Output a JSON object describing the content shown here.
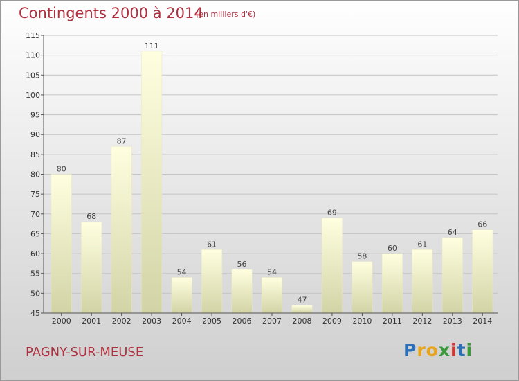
{
  "header": {
    "title": "Contingents 2000 à 2014",
    "unit": "(en milliers d'€)"
  },
  "footer": {
    "commune": "PAGNY-SUR-MEUSE",
    "logo": "Proxiti"
  },
  "colors": {
    "title": "#b03040",
    "bar_light": "#ffffe0",
    "bar_dark": "#d2d4a6",
    "logo": [
      "#2b6fb6",
      "#e8a317",
      "#e8a317",
      "#3a9a3a",
      "#d8332e",
      "#2b6fb6",
      "#3a9a3a"
    ]
  },
  "chart_data": {
    "type": "bar",
    "categories": [
      "2000",
      "2001",
      "2002",
      "2003",
      "2004",
      "2005",
      "2006",
      "2007",
      "2008",
      "2009",
      "2010",
      "2011",
      "2012",
      "2013",
      "2014"
    ],
    "values": [
      80,
      68,
      87,
      111,
      54,
      61,
      56,
      54,
      47,
      69,
      58,
      60,
      61,
      64,
      66
    ],
    "title": "Contingents 2000 à 2014",
    "ylabel": "",
    "xlabel": "",
    "ylim": [
      45,
      115
    ],
    "yticks": [
      45,
      50,
      55,
      60,
      65,
      70,
      75,
      80,
      85,
      90,
      95,
      100,
      105,
      110,
      115
    ],
    "grid": "horizontal"
  }
}
